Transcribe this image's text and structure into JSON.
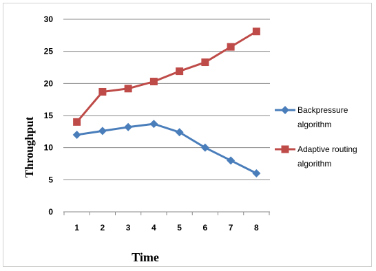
{
  "chart_data": {
    "type": "line",
    "title": "",
    "xlabel": "Time",
    "ylabel": "Throughput",
    "categories": [
      "1",
      "2",
      "3",
      "4",
      "5",
      "6",
      "7",
      "8"
    ],
    "ylim": [
      0,
      30
    ],
    "yticks": [
      0,
      5,
      10,
      15,
      20,
      25,
      30
    ],
    "grid": "horizontal",
    "legend_position": "right",
    "series": [
      {
        "name": "Backpressure algorithm",
        "legend_lines": [
          "Backpressure",
          "algorithm"
        ],
        "color": "#4a7ebb",
        "marker": "diamond",
        "values": [
          12,
          12.6,
          13.2,
          13.7,
          12.4,
          10,
          8,
          6
        ]
      },
      {
        "name": "Adaptive routing algorithm",
        "legend_lines": [
          "Adaptive routing",
          "algorithm"
        ],
        "color": "#be4b48",
        "marker": "square",
        "values": [
          14,
          18.7,
          19.2,
          20.3,
          21.9,
          23.3,
          25.7,
          28.1
        ]
      }
    ]
  }
}
